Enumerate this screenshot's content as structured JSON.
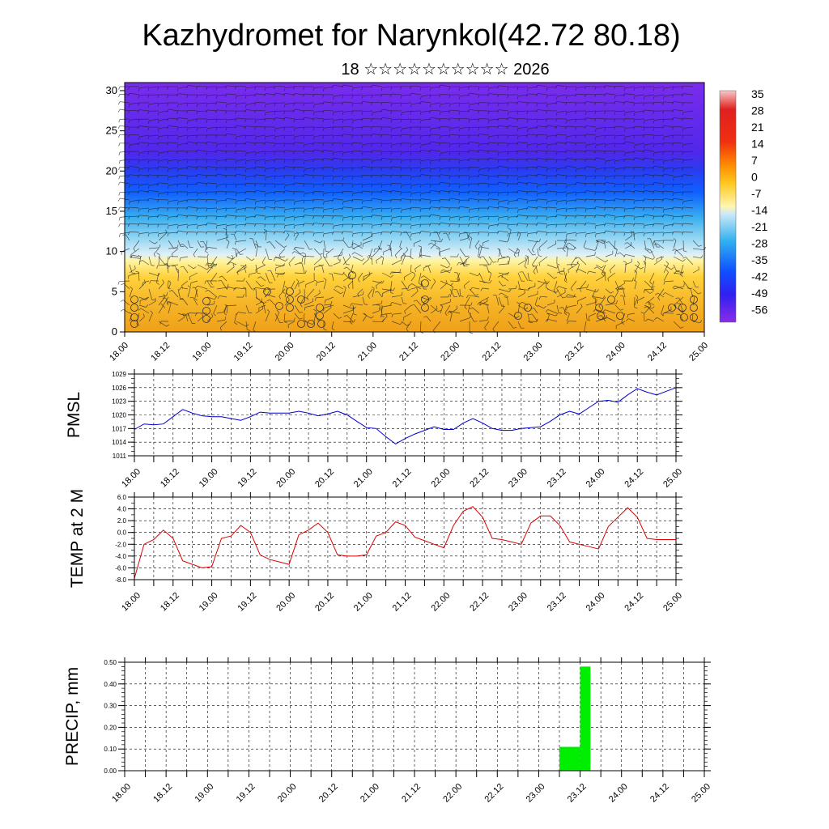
{
  "title": "Kazhydromet for Narynkol(42.72 80.18)",
  "subtitle": "18 ☆☆☆☆☆☆☆☆☆☆ 2026",
  "time_ticks": [
    "18.00",
    "18.12",
    "19.00",
    "19.12",
    "20.00",
    "20.12",
    "21.00",
    "21.12",
    "22.00",
    "22.12",
    "23.00",
    "23.12",
    "24.00",
    "24.12",
    "25.00"
  ],
  "colorbar_labels": [
    "35",
    "28",
    "21",
    "14",
    "7",
    "0",
    "-7",
    "-14",
    "-21",
    "-28",
    "-35",
    "-42",
    "-49",
    "-56"
  ],
  "chart_data": [
    {
      "type": "heatmap",
      "description_of_field": "temperature cross-section with wind barbs",
      "x_categories": [
        "18.00",
        "18.12",
        "19.00",
        "19.12",
        "20.00",
        "20.12",
        "21.00",
        "21.12",
        "22.00",
        "22.12",
        "23.00",
        "23.12",
        "24.00",
        "24.12",
        "25.00"
      ],
      "yticks": [
        "0",
        "5",
        "10",
        "15",
        "20",
        "25",
        "30"
      ],
      "ylim": [
        0,
        31
      ],
      "value_bands_by_level": [
        {
          "level": 0,
          "value": 7
        },
        {
          "level": 5,
          "value": 0
        },
        {
          "level": 10,
          "value": -7
        },
        {
          "level": 13,
          "value": -21
        },
        {
          "level": 16,
          "value": -35
        },
        {
          "level": 20,
          "value": -49
        },
        {
          "level": 22,
          "value": -56
        },
        {
          "level": 31,
          "value": -49
        }
      ],
      "colorbar": [
        "35",
        "28",
        "21",
        "14",
        "7",
        "0",
        "-7",
        "-14",
        "-21",
        "-28",
        "-35",
        "-42",
        "-49",
        "-56"
      ]
    },
    {
      "type": "line",
      "ylabel": "PMSL",
      "color": "#0000cc",
      "ylim": [
        1011,
        1029
      ],
      "yticks": [
        "1011",
        "1014",
        "1017",
        "1020",
        "1023",
        "1026",
        "1029"
      ],
      "x": [
        0,
        3,
        6,
        9,
        12,
        15,
        18,
        21,
        24,
        27,
        30,
        33,
        36,
        39,
        42,
        45,
        48,
        51,
        54,
        57,
        60,
        63,
        66,
        69,
        72,
        75,
        78,
        81,
        84,
        87,
        90,
        93,
        96,
        99,
        102,
        105,
        108,
        111,
        114,
        117,
        120,
        123,
        126,
        129,
        132,
        135,
        138,
        141,
        144,
        147,
        150,
        153,
        156,
        159,
        162,
        165,
        168
      ],
      "values": [
        1016.8,
        1018.0,
        1017.8,
        1018.0,
        1019.6,
        1021.2,
        1020.4,
        1019.8,
        1019.6,
        1019.6,
        1019.2,
        1018.8,
        1019.6,
        1020.6,
        1020.4,
        1020.4,
        1020.4,
        1020.8,
        1020.4,
        1019.8,
        1020.2,
        1020.8,
        1020.0,
        1018.6,
        1017.2,
        1017.0,
        1015.2,
        1013.6,
        1014.8,
        1015.8,
        1016.6,
        1017.4,
        1016.8,
        1016.8,
        1018.2,
        1019.2,
        1018.2,
        1017.0,
        1016.6,
        1016.6,
        1017.0,
        1017.2,
        1017.4,
        1018.6,
        1020.0,
        1020.8,
        1020.2,
        1021.6,
        1023.0,
        1023.2,
        1022.8,
        1024.4,
        1025.8,
        1025.0,
        1024.4,
        1025.2,
        1026.0
      ]
    },
    {
      "type": "line",
      "ylabel": "TEMP at 2 M",
      "color": "#dd0000",
      "ylim": [
        -8,
        6
      ],
      "yticks": [
        "6.0",
        "4.0",
        "2.0",
        "0.0",
        "-2.0",
        "-4.0",
        "-6.0",
        "-8.0"
      ],
      "x": [
        0,
        3,
        6,
        9,
        12,
        15,
        18,
        21,
        24,
        27,
        30,
        33,
        36,
        39,
        42,
        45,
        48,
        51,
        54,
        57,
        60,
        63,
        66,
        69,
        72,
        75,
        78,
        81,
        84,
        87,
        90,
        93,
        96,
        99,
        102,
        105,
        108,
        111,
        114,
        117,
        120,
        123,
        126,
        129,
        132,
        135,
        138,
        141,
        144,
        147,
        150,
        153,
        156,
        159,
        162,
        165,
        168
      ],
      "values": [
        -7.8,
        -2.0,
        -1.2,
        0.4,
        -1.0,
        -4.8,
        -5.4,
        -6.0,
        -5.8,
        -1.0,
        -0.6,
        1.2,
        0.0,
        -3.8,
        -4.6,
        -5.0,
        -5.4,
        -0.4,
        0.4,
        1.6,
        0.0,
        -3.8,
        -4.0,
        -4.0,
        -3.8,
        -0.6,
        0.0,
        1.8,
        1.2,
        -0.8,
        -1.4,
        -2.0,
        -2.6,
        1.2,
        3.6,
        4.4,
        2.6,
        -1.0,
        -1.2,
        -1.6,
        -2.0,
        1.6,
        2.8,
        2.8,
        1.2,
        -1.6,
        -2.0,
        -2.4,
        -2.8,
        1.0,
        2.6,
        4.2,
        2.6,
        -1.0,
        -1.2,
        -1.2,
        -1.2
      ]
    },
    {
      "type": "bar",
      "ylabel": "PRECIP, mm",
      "color": "#00ee00",
      "ylim": [
        0,
        0.5
      ],
      "yticks": [
        "0.50",
        "0.40",
        "0.30",
        "0.20",
        "0.10",
        "0.00"
      ],
      "bars": [
        {
          "start_hour": 126,
          "end_hour": 132,
          "value": 0.11
        },
        {
          "start_hour": 132,
          "end_hour": 135,
          "value": 0.48
        }
      ]
    }
  ]
}
